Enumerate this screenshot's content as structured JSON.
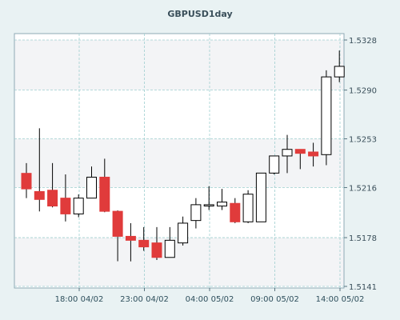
{
  "chart_data": {
    "type": "candlestick",
    "title": "GBPUSD1day",
    "y_ticks": [
      "1.5328",
      "1.5290",
      "1.5253",
      "1.5216",
      "1.5178",
      "1.5141"
    ],
    "ylim": [
      1.5141,
      1.5328
    ],
    "x_ticks": [
      "18:00 04/02",
      "23:00 04/02",
      "04:00 05/02",
      "09:00 05/02",
      "14:00 05/02"
    ],
    "grid": true,
    "colors": {
      "up": "#ffffff",
      "down": "#e03b3b",
      "wick": "#000000",
      "grid": "#9fcfd0",
      "plot_bg": "#ffffff",
      "band_bg": "#f3f4f6"
    },
    "candles": [
      {
        "open": 1.52268,
        "high": 1.52346,
        "low": 1.5208,
        "close": 1.5215
      },
      {
        "open": 1.5213,
        "high": 1.5261,
        "low": 1.51979,
        "close": 1.5207
      },
      {
        "open": 1.5214,
        "high": 1.52346,
        "low": 1.5201,
        "close": 1.5202
      },
      {
        "open": 1.5208,
        "high": 1.5226,
        "low": 1.51903,
        "close": 1.5196
      },
      {
        "open": 1.5196,
        "high": 1.52108,
        "low": 1.51935,
        "close": 1.5208
      },
      {
        "open": 1.5208,
        "high": 1.5232,
        "low": 1.5208,
        "close": 1.52239
      },
      {
        "open": 1.52239,
        "high": 1.52379,
        "low": 1.51973,
        "close": 1.5198
      },
      {
        "open": 1.5198,
        "high": 1.51987,
        "low": 1.51601,
        "close": 1.5179
      },
      {
        "open": 1.5179,
        "high": 1.5189,
        "low": 1.516,
        "close": 1.5176
      },
      {
        "open": 1.5176,
        "high": 1.5186,
        "low": 1.5168,
        "close": 1.5171
      },
      {
        "open": 1.5174,
        "high": 1.5186,
        "low": 1.5161,
        "close": 1.5163
      },
      {
        "open": 1.5163,
        "high": 1.5186,
        "low": 1.5163,
        "close": 1.5176
      },
      {
        "open": 1.5174,
        "high": 1.5194,
        "low": 1.5172,
        "close": 1.5189
      },
      {
        "open": 1.5191,
        "high": 1.5208,
        "low": 1.5185,
        "close": 1.5203
      },
      {
        "open": 1.5202,
        "high": 1.5217,
        "low": 1.5199,
        "close": 1.5203
      },
      {
        "open": 1.5202,
        "high": 1.5215,
        "low": 1.5199,
        "close": 1.5205
      },
      {
        "open": 1.5204,
        "high": 1.5208,
        "low": 1.5189,
        "close": 1.519
      },
      {
        "open": 1.519,
        "high": 1.5214,
        "low": 1.5189,
        "close": 1.5211
      },
      {
        "open": 1.519,
        "high": 1.5227,
        "low": 1.519,
        "close": 1.5227
      },
      {
        "open": 1.5227,
        "high": 1.524,
        "low": 1.5226,
        "close": 1.524
      },
      {
        "open": 1.524,
        "high": 1.5256,
        "low": 1.5227,
        "close": 1.5245
      },
      {
        "open": 1.5245,
        "high": 1.5245,
        "low": 1.523,
        "close": 1.5242
      },
      {
        "open": 1.5243,
        "high": 1.525,
        "low": 1.5232,
        "close": 1.524
      },
      {
        "open": 1.5241,
        "high": 1.5305,
        "low": 1.5233,
        "close": 1.53
      },
      {
        "open": 1.53,
        "high": 1.532,
        "low": 1.5296,
        "close": 1.5308
      }
    ]
  }
}
